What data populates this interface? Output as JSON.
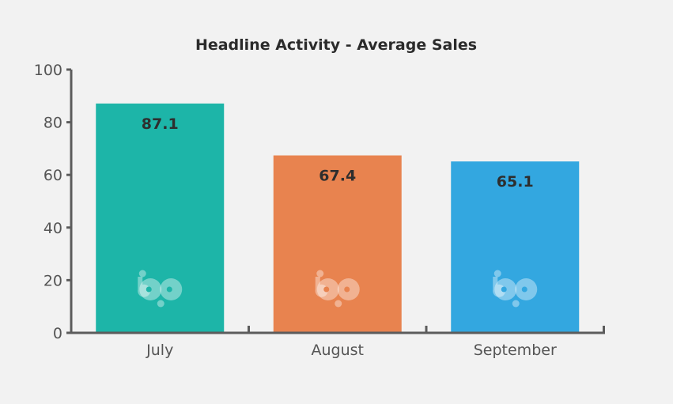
{
  "chart_data": {
    "type": "bar",
    "title": "Headline Activity - Average Sales",
    "xlabel": "",
    "ylabel": "",
    "categories": [
      "July",
      "August",
      "September"
    ],
    "values": [
      87.1,
      67.4,
      65.1
    ],
    "data_labels": [
      "87.1",
      "67.4",
      "65.1"
    ],
    "colors": [
      "#1db5a8",
      "#e8834f",
      "#33a7e0"
    ],
    "ylim": [
      0,
      100
    ],
    "yticks": [
      0,
      20,
      40,
      60,
      80,
      100
    ],
    "ytick_labels": [
      "0",
      "20",
      "40",
      "60",
      "80",
      "100"
    ],
    "grid": false,
    "legend": "none"
  },
  "decoration": {
    "bar_logo": "bp-logo-icon"
  }
}
